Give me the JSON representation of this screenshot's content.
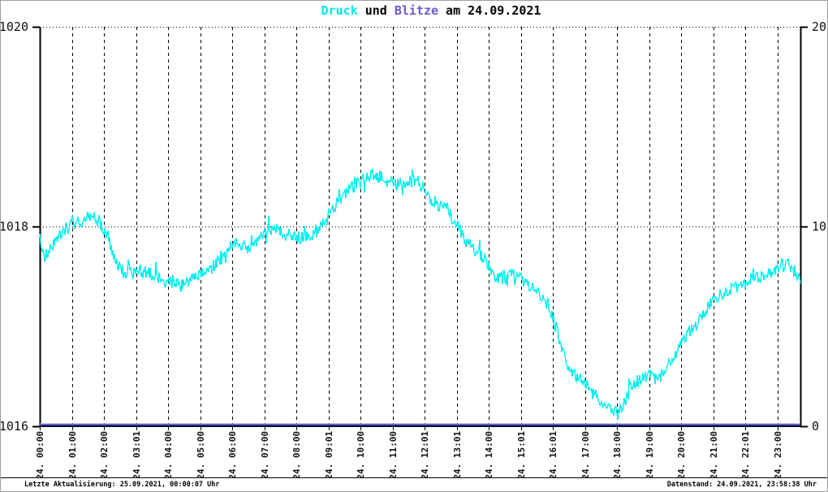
{
  "title": {
    "druck": "Druck",
    "connector": " und ",
    "blitze": "Blitze",
    "date_suffix": " am 24.09.2021",
    "druck_color": "#00e8e8",
    "blitze_color": "#6a5acd",
    "text_color": "#000000"
  },
  "footer": {
    "left": "Letzte Aktualisierung: 25.09.2021, 00:00:07 Uhr",
    "right": "Datenstand: 24.09.2021, 23:58:38 Uhr"
  },
  "colors": {
    "pressure_line": "#00efef",
    "lightning_line": "#23238c",
    "lightning_line_highlight": "#8a8ad8",
    "grid": "#000000",
    "axis": "#000000",
    "tick_text": "#111111"
  },
  "chart_data": {
    "type": "line",
    "title": "Druck und Blitze am 24.09.2021",
    "x_tick_labels": [
      "24. 00:00",
      "24. 01:00",
      "24. 02:00",
      "24. 03:01",
      "24. 04:00",
      "24. 05:00",
      "24. 06:00",
      "24. 07:00",
      "24. 08:00",
      "24. 09:01",
      "24. 10:00",
      "24. 11:00",
      "24. 12:01",
      "24. 13:01",
      "24. 14:00",
      "24. 15:01",
      "24. 16:01",
      "24. 17:00",
      "24. 18:00",
      "24. 19:00",
      "24. 20:00",
      "24. 21:00",
      "24. 22:01",
      "24. 23:00"
    ],
    "x_hours": [
      0,
      1,
      2,
      3,
      4,
      5,
      6,
      7,
      8,
      9,
      10,
      11,
      12,
      13,
      14,
      15,
      16,
      17,
      18,
      19,
      20,
      21,
      22,
      23
    ],
    "x_range_hours": [
      0,
      23.72
    ],
    "left_axis": {
      "min": 1016,
      "max": 1020,
      "tick_values": [
        1016,
        1018,
        1020
      ],
      "tick_labels": [
        "1016",
        "1018",
        "1020"
      ]
    },
    "right_axis": {
      "min": 0,
      "max": 20,
      "tick_values": [
        0,
        10,
        20
      ],
      "tick_labels": [
        "0",
        "10",
        "20"
      ]
    },
    "grid": {
      "vertical": "hourly dashed",
      "horizontal": "dotted at tick values",
      "legend": "none"
    },
    "noise_band_hpa": 0.13,
    "series": [
      {
        "name": "Druck",
        "axis": "left",
        "color": "#00efef",
        "t_hours": [
          0.0,
          0.15,
          0.4,
          0.7,
          1.0,
          1.3,
          1.6,
          1.85,
          2.1,
          2.35,
          2.6,
          2.9,
          3.2,
          3.5,
          3.8,
          4.1,
          4.4,
          4.7,
          5.0,
          5.4,
          5.8,
          6.1,
          6.4,
          6.7,
          7.0,
          7.3,
          7.6,
          7.9,
          8.2,
          8.5,
          8.8,
          9.1,
          9.4,
          9.7,
          10.0,
          10.35,
          10.6,
          10.9,
          11.2,
          11.5,
          11.8,
          12.0,
          12.15,
          12.35,
          12.55,
          12.75,
          13.0,
          13.3,
          13.6,
          13.9,
          14.15,
          14.5,
          14.8,
          15.1,
          15.4,
          15.7,
          15.95,
          16.1,
          16.3,
          16.5,
          16.7,
          16.9,
          17.2,
          17.5,
          17.8,
          18.0,
          18.2,
          18.45,
          18.7,
          19.0,
          19.25,
          19.5,
          19.8,
          20.1,
          20.4,
          20.7,
          21.0,
          21.3,
          21.6,
          21.9,
          22.2,
          22.5,
          22.8,
          23.1,
          23.35,
          23.55,
          23.7
        ],
        "values": [
          1017.88,
          1017.7,
          1017.82,
          1017.95,
          1018.02,
          1018.05,
          1018.1,
          1018.05,
          1017.92,
          1017.65,
          1017.55,
          1017.52,
          1017.56,
          1017.52,
          1017.47,
          1017.44,
          1017.4,
          1017.45,
          1017.52,
          1017.6,
          1017.72,
          1017.85,
          1017.78,
          1017.82,
          1017.92,
          1018.0,
          1017.93,
          1017.9,
          1017.88,
          1017.93,
          1018.02,
          1018.18,
          1018.3,
          1018.38,
          1018.45,
          1018.52,
          1018.5,
          1018.44,
          1018.42,
          1018.46,
          1018.44,
          1018.38,
          1018.32,
          1018.18,
          1018.25,
          1018.15,
          1018.02,
          1017.85,
          1017.75,
          1017.68,
          1017.5,
          1017.48,
          1017.52,
          1017.45,
          1017.38,
          1017.28,
          1017.12,
          1016.98,
          1016.75,
          1016.56,
          1016.5,
          1016.46,
          1016.35,
          1016.24,
          1016.17,
          1016.13,
          1016.22,
          1016.4,
          1016.46,
          1016.52,
          1016.44,
          1016.58,
          1016.72,
          1016.88,
          1016.98,
          1017.12,
          1017.28,
          1017.33,
          1017.38,
          1017.42,
          1017.47,
          1017.5,
          1017.54,
          1017.6,
          1017.62,
          1017.52,
          1017.45
        ]
      },
      {
        "name": "Blitze",
        "axis": "right",
        "color": "#23238c",
        "t_hours": [
          0.0,
          23.7
        ],
        "values": [
          0,
          0
        ]
      }
    ]
  }
}
